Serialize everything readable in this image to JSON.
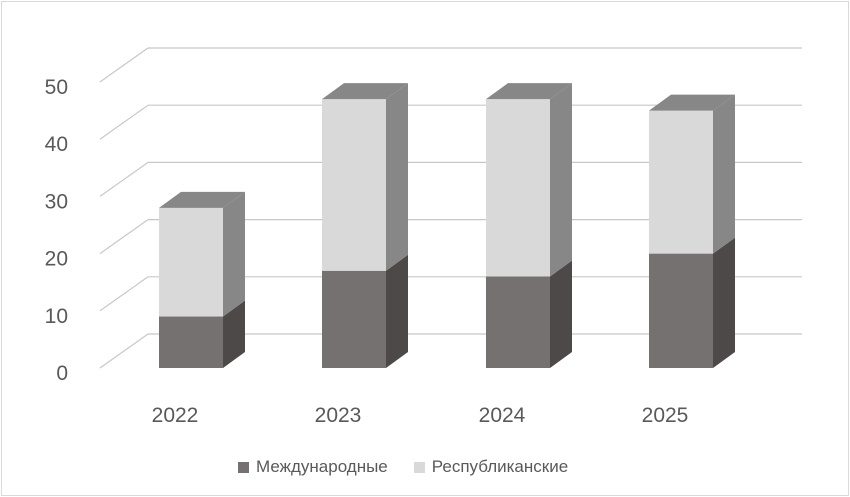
{
  "chart_data": {
    "type": "bar",
    "stacked": true,
    "three_d": true,
    "categories": [
      "2022",
      "2023",
      "2024",
      "2025"
    ],
    "series": [
      {
        "name": "Международные",
        "values": [
          9,
          17,
          16,
          20
        ],
        "color": "#767171"
      },
      {
        "name": "Республиканские",
        "values": [
          19,
          30,
          31,
          25
        ],
        "color": "#d9d9d9"
      }
    ],
    "title": "",
    "xlabel": "",
    "ylabel": "",
    "ylim": [
      0,
      50
    ],
    "yticks": [
      "0",
      "10",
      "20",
      "30",
      "40",
      "50"
    ],
    "grid": true,
    "legend_position": "bottom"
  }
}
